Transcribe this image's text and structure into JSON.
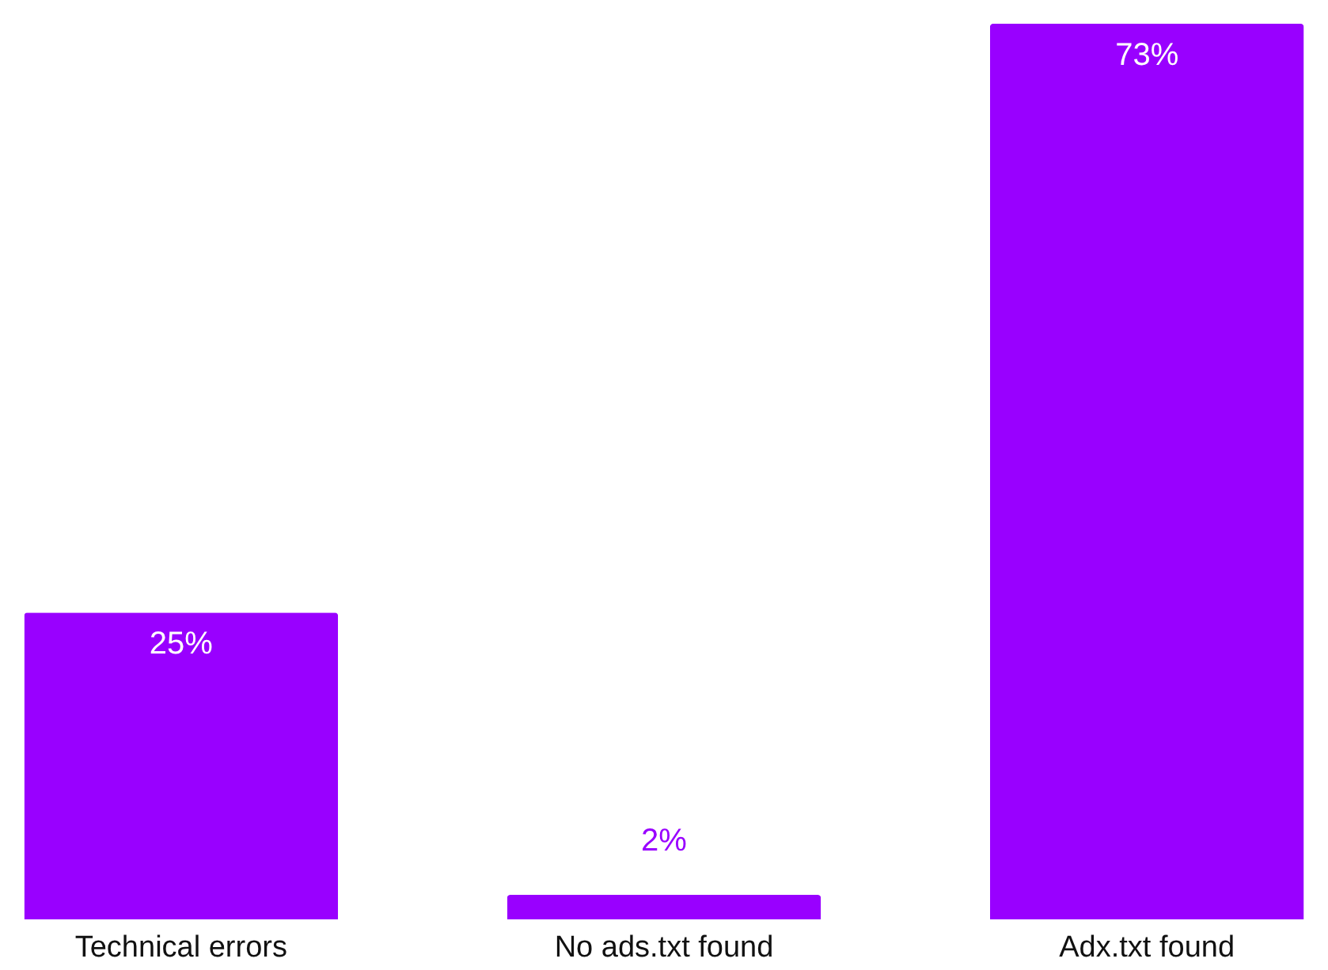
{
  "chart_data": {
    "type": "bar",
    "categories": [
      "Technical errors",
      "No ads.txt found",
      "Adx.txt found"
    ],
    "values": [
      25,
      2,
      73
    ],
    "value_labels": [
      "25%",
      "2%",
      "73%"
    ],
    "color": "#9900ff"
  }
}
